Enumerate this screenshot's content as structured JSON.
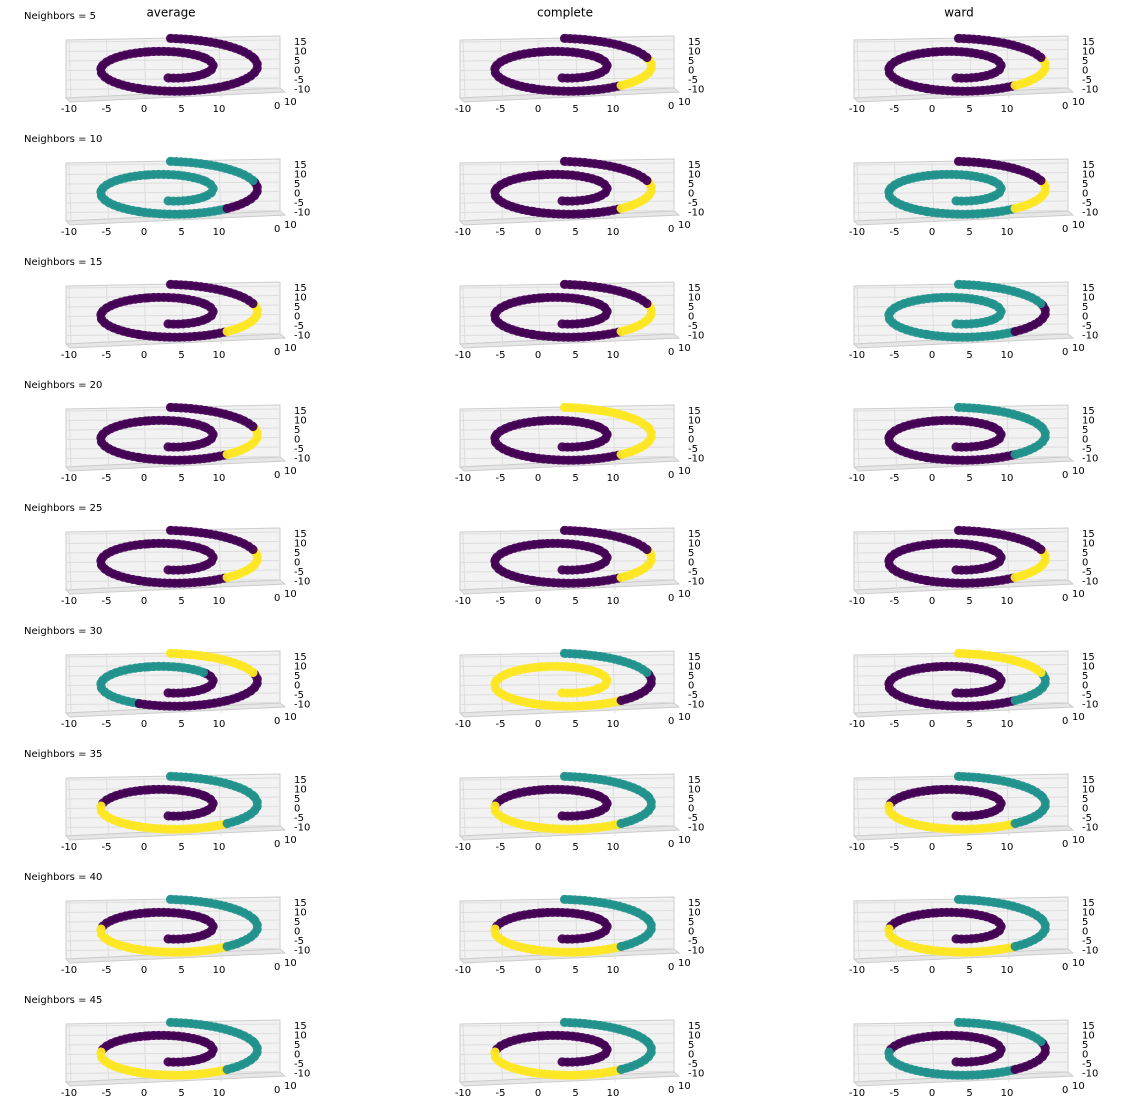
{
  "columns": [
    "average",
    "complete",
    "ward"
  ],
  "rows": [
    "Neighbors = 5",
    "Neighbors = 10",
    "Neighbors = 15",
    "Neighbors = 20",
    "Neighbors = 25",
    "Neighbors = 30",
    "Neighbors = 35",
    "Neighbors = 40",
    "Neighbors = 45"
  ],
  "xticks": [
    -10,
    -5,
    0,
    5,
    10
  ],
  "zticks": [
    15,
    10,
    5,
    0,
    -5,
    -10
  ],
  "yticks": [
    0,
    10
  ],
  "colors": {
    "p": "#440154",
    "t": "#21918c",
    "y": "#fde725"
  },
  "panels": [
    [
      "pppppppp",
      "ppppppyp",
      "ppppppyp"
    ],
    [
      "ttttttpt",
      "ppppppyp",
      "ttttttyp"
    ],
    [
      "ppppppyp",
      "ppppppyp",
      "ttttttpt"
    ],
    [
      "ppppppyp",
      "ppppppyy",
      "pppppptt"
    ],
    [
      "ppppppyp",
      "ppppppyp",
      "ppppppyp"
    ],
    [
      "pptttppy",
      "yyyyyypt",
      "ppppppty"
    ],
    [
      "ppppyytt",
      "ppppyytt",
      "ppppyytt"
    ],
    [
      "ppppyytt",
      "ppppyytt",
      "ppppyytt"
    ],
    [
      "ppppyytt",
      "ppppyytt",
      "ppppttpt"
    ]
  ]
}
